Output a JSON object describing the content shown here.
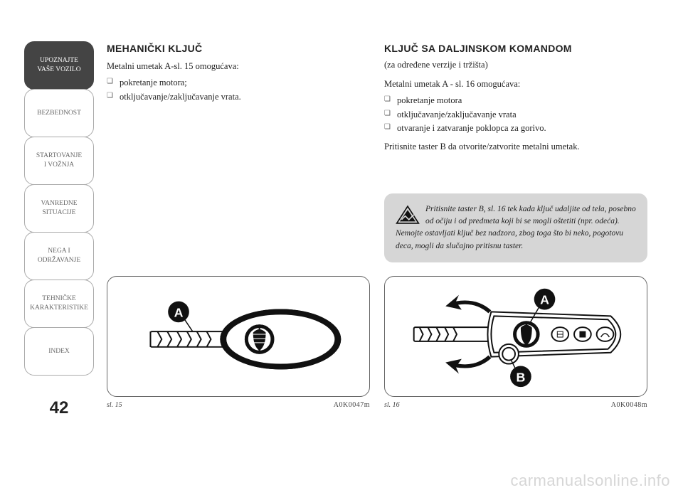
{
  "page_number": "42",
  "sidebar": {
    "items": [
      {
        "label": "UPOZNAJTE\nVAŠE VOZILO",
        "active": true
      },
      {
        "label": "BEZBEDNOST",
        "active": false
      },
      {
        "label": "STARTOVANJE\nI VOŽNJA",
        "active": false
      },
      {
        "label": "VANREDNE\nSITUACIJE",
        "active": false
      },
      {
        "label": "NEGA I\nODRŽAVANJE",
        "active": false
      },
      {
        "label": "TEHNIČKE\nKARAKTERISTIKE",
        "active": false
      },
      {
        "label": "INDEX",
        "active": false
      }
    ]
  },
  "left_column": {
    "heading": "MEHANIČKI KLJUČ",
    "intro": "Metalni umetak A-sl. 15 omogućava:",
    "bullets": [
      "pokretanje motora;",
      "otključavanje/zaključavanje vrata."
    ]
  },
  "right_column": {
    "heading": "KLJUČ SA DALJINSKOM KOMANDOM",
    "sub": "(za određene verzije i tržišta)",
    "intro": "Metalni umetak A - sl. 16 omogućava:",
    "bullets": [
      "pokretanje motora",
      "otključavanje/zaključavanje vrata",
      "otvaranje i zatvaranje poklopca za gorivo."
    ],
    "after": "Pritisnite taster B da otvorite/zatvorite metalni umetak."
  },
  "warning": {
    "text": "Pritisnite taster B, sl. 16 tek kada ključ udaljite od tela, posebno od očiju i od predmeta koji bi se mogli oštetiti (npr. odeća). Nemojte ostavljati ključ bez nad­zora, zbog toga što bi neko, pogotovu deca, mogli da slučajno pritisnu taster."
  },
  "figures": {
    "left": {
      "caption": "sl. 15",
      "code": "A0K0047m",
      "markers": [
        "A"
      ]
    },
    "right": {
      "caption": "sl. 16",
      "code": "A0K0048m",
      "markers": [
        "A",
        "B"
      ]
    }
  },
  "watermark": "carmanualsonline.info",
  "colors": {
    "nav_active_bg": "#444444",
    "nav_border": "#aaaaaa",
    "warning_bg": "#d6d6d6",
    "text": "#222222"
  }
}
